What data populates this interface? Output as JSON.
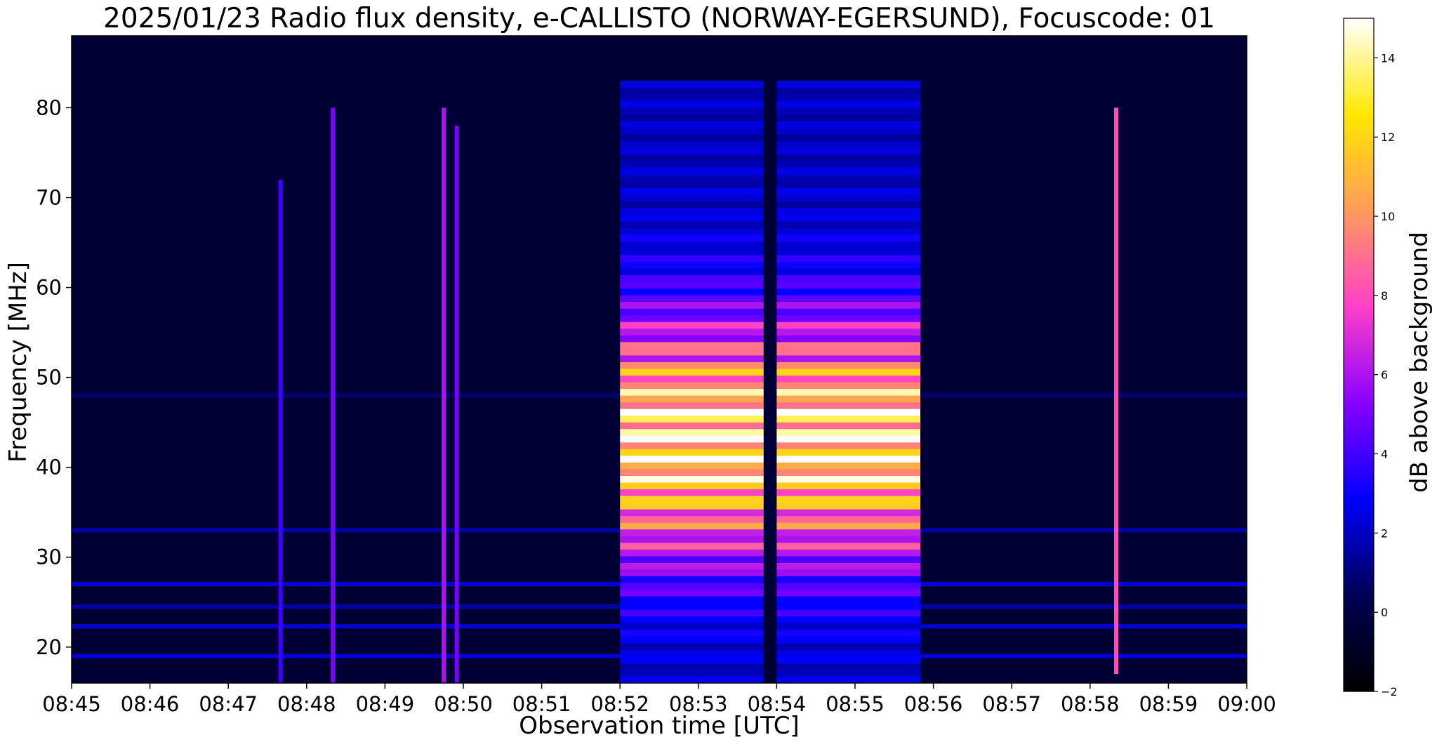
{
  "chart_data": {
    "type": "heatmap",
    "title": "2025/01/23  Radio flux density, e-CALLISTO (NORWAY-EGERSUND), Focuscode: 01",
    "xlabel": "Observation time [UTC]",
    "ylabel": "Frequency [MHz]",
    "colorbar_label": "dB above background",
    "x_ticks": [
      "08:45",
      "08:46",
      "08:47",
      "08:48",
      "08:49",
      "08:50",
      "08:51",
      "08:52",
      "08:53",
      "08:54",
      "08:55",
      "08:56",
      "08:57",
      "08:58",
      "08:59",
      "09:00"
    ],
    "xlim": [
      "08:45",
      "09:00"
    ],
    "y_ticks": [
      20,
      30,
      40,
      50,
      60,
      70,
      80
    ],
    "ylim": [
      16,
      88
    ],
    "colorbar_ticks": [
      -2,
      0,
      2,
      4,
      6,
      8,
      10,
      12,
      14
    ],
    "clim": [
      -2,
      15
    ],
    "colormap": [
      "#000000",
      "#000055",
      "#0000ff",
      "#8a00ff",
      "#ff40c8",
      "#ff9a5a",
      "#ffe800",
      "#ffffff"
    ],
    "background_dB": -0.5,
    "features": [
      {
        "type": "broadband_emission",
        "start": "08:52",
        "end": "08:55:50",
        "freq_range": [
          16,
          83
        ],
        "peak_dB": 14,
        "gap": [
          "08:53:50",
          "08:54:00"
        ]
      },
      {
        "type": "vertical_spike",
        "time": "08:47:40",
        "freq_range": [
          16,
          72
        ],
        "dB": 4
      },
      {
        "type": "vertical_spike",
        "time": "08:48:20",
        "freq_range": [
          16,
          80
        ],
        "dB": 5
      },
      {
        "type": "vertical_spike",
        "time": "08:49:45",
        "freq_range": [
          16,
          80
        ],
        "dB": 6
      },
      {
        "type": "vertical_spike",
        "time": "08:49:55",
        "freq_range": [
          16,
          78
        ],
        "dB": 5
      },
      {
        "type": "vertical_spike",
        "time": "08:58:20",
        "freq_range": [
          17,
          80
        ],
        "dB": 8
      },
      {
        "type": "horizontal_interference",
        "freq": 33,
        "dB": 2
      },
      {
        "type": "horizontal_interference",
        "freq": 27,
        "dB": 3
      },
      {
        "type": "horizontal_interference",
        "freq": 24.5,
        "dB": 2
      },
      {
        "type": "horizontal_interference",
        "freq": 22.3,
        "dB": 3
      },
      {
        "type": "horizontal_interference",
        "freq": 19,
        "dB": 3
      },
      {
        "type": "horizontal_interference",
        "freq": 48,
        "dB": 1
      }
    ]
  }
}
